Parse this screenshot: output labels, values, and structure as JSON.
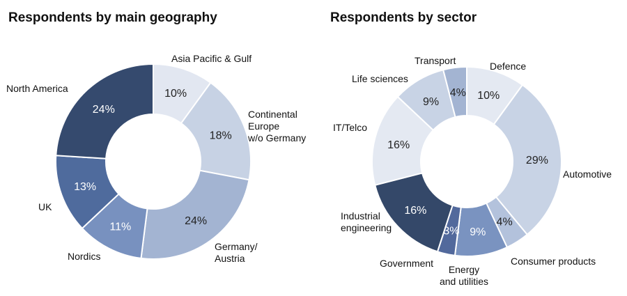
{
  "chart_data": [
    {
      "type": "pie",
      "title": "Respondents by main geography",
      "categories": [
        "Asia Pacific & Gulf",
        "Continental Europe w/o Germany",
        "Germany/ Austria",
        "Nordics",
        "UK",
        "North America"
      ],
      "values": [
        10,
        18,
        24,
        11,
        13,
        24
      ],
      "value_labels": [
        "10%",
        "18%",
        "24%",
        "11%",
        "13%",
        "24%"
      ],
      "category_label_lines": [
        [
          "Asia Pacific & Gulf"
        ],
        [
          "Continental",
          "Europe",
          "w/o Germany"
        ],
        [
          "Germany/",
          "Austria"
        ],
        [
          "Nordics"
        ],
        [
          "UK"
        ],
        [
          "North America"
        ]
      ],
      "colors": [
        "#e2e7f1",
        "#c7d2e4",
        "#a3b4d2",
        "#7891bf",
        "#4f6b9d",
        "#354a6e"
      ],
      "label_colors": [
        "#222222",
        "#222222",
        "#222222",
        "#ffffff",
        "#ffffff",
        "#ffffff"
      ]
    },
    {
      "type": "pie",
      "title": "Respondents by sector",
      "categories": [
        "Defence",
        "Automotive",
        "Consumer products",
        "Energy and utilities",
        "Government",
        "Industrial engineering",
        "IT/Telco",
        "Life sciences",
        "Transport"
      ],
      "values": [
        10,
        29,
        4,
        9,
        3,
        16,
        16,
        9,
        4
      ],
      "value_labels": [
        "10%",
        "29%",
        "4%",
        "9%",
        "3%",
        "16%",
        "16%",
        "9%",
        "4%"
      ],
      "category_label_lines": [
        [
          "Defence"
        ],
        [
          "Automotive"
        ],
        [
          "Consumer products"
        ],
        [
          "Energy",
          "and utilities"
        ],
        [
          "Government"
        ],
        [
          "Industrial",
          "engineering"
        ],
        [
          "IT/Telco"
        ],
        [
          "Life sciences"
        ],
        [
          "Transport"
        ]
      ],
      "colors": [
        "#e4e9f2",
        "#c8d3e5",
        "#b3c2dc",
        "#7a93c0",
        "#52699c",
        "#344869",
        "#e4e9f2",
        "#c8d3e5",
        "#a3b4d2"
      ],
      "label_colors": [
        "#222222",
        "#222222",
        "#222222",
        "#ffffff",
        "#ffffff",
        "#ffffff",
        "#222222",
        "#222222",
        "#222222"
      ]
    }
  ]
}
